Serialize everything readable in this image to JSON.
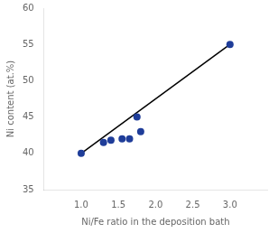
{
  "chart_data": {
    "type": "scatter",
    "xlabel": "Ni/Fe ratio in the deposition bath",
    "ylabel": "Ni content (at.%)",
    "series": [
      {
        "type": "line",
        "color": "#000000",
        "x": [
          1.0,
          3.0
        ],
        "values": [
          40.0,
          55.0
        ]
      },
      {
        "type": "scatter",
        "color": "#1f3d99",
        "x": [
          1.0,
          1.3,
          1.4,
          1.55,
          1.65,
          1.75,
          1.8,
          3.0
        ],
        "values": [
          40.0,
          41.5,
          41.8,
          42.0,
          42.0,
          45.0,
          43.0,
          55.0
        ]
      }
    ],
    "xlim": [
      0.5,
      3.5
    ],
    "xticks": [
      {
        "value": 1.0,
        "label": "1.0"
      },
      1.5,
      {
        "value": 2.0,
        "label": "2.0"
      },
      2.5,
      {
        "value": 3.0,
        "label": "3.0"
      }
    ],
    "ylim": [
      35,
      60
    ],
    "yticks": [
      35,
      40,
      45,
      50,
      55,
      60
    ],
    "grid": false
  }
}
